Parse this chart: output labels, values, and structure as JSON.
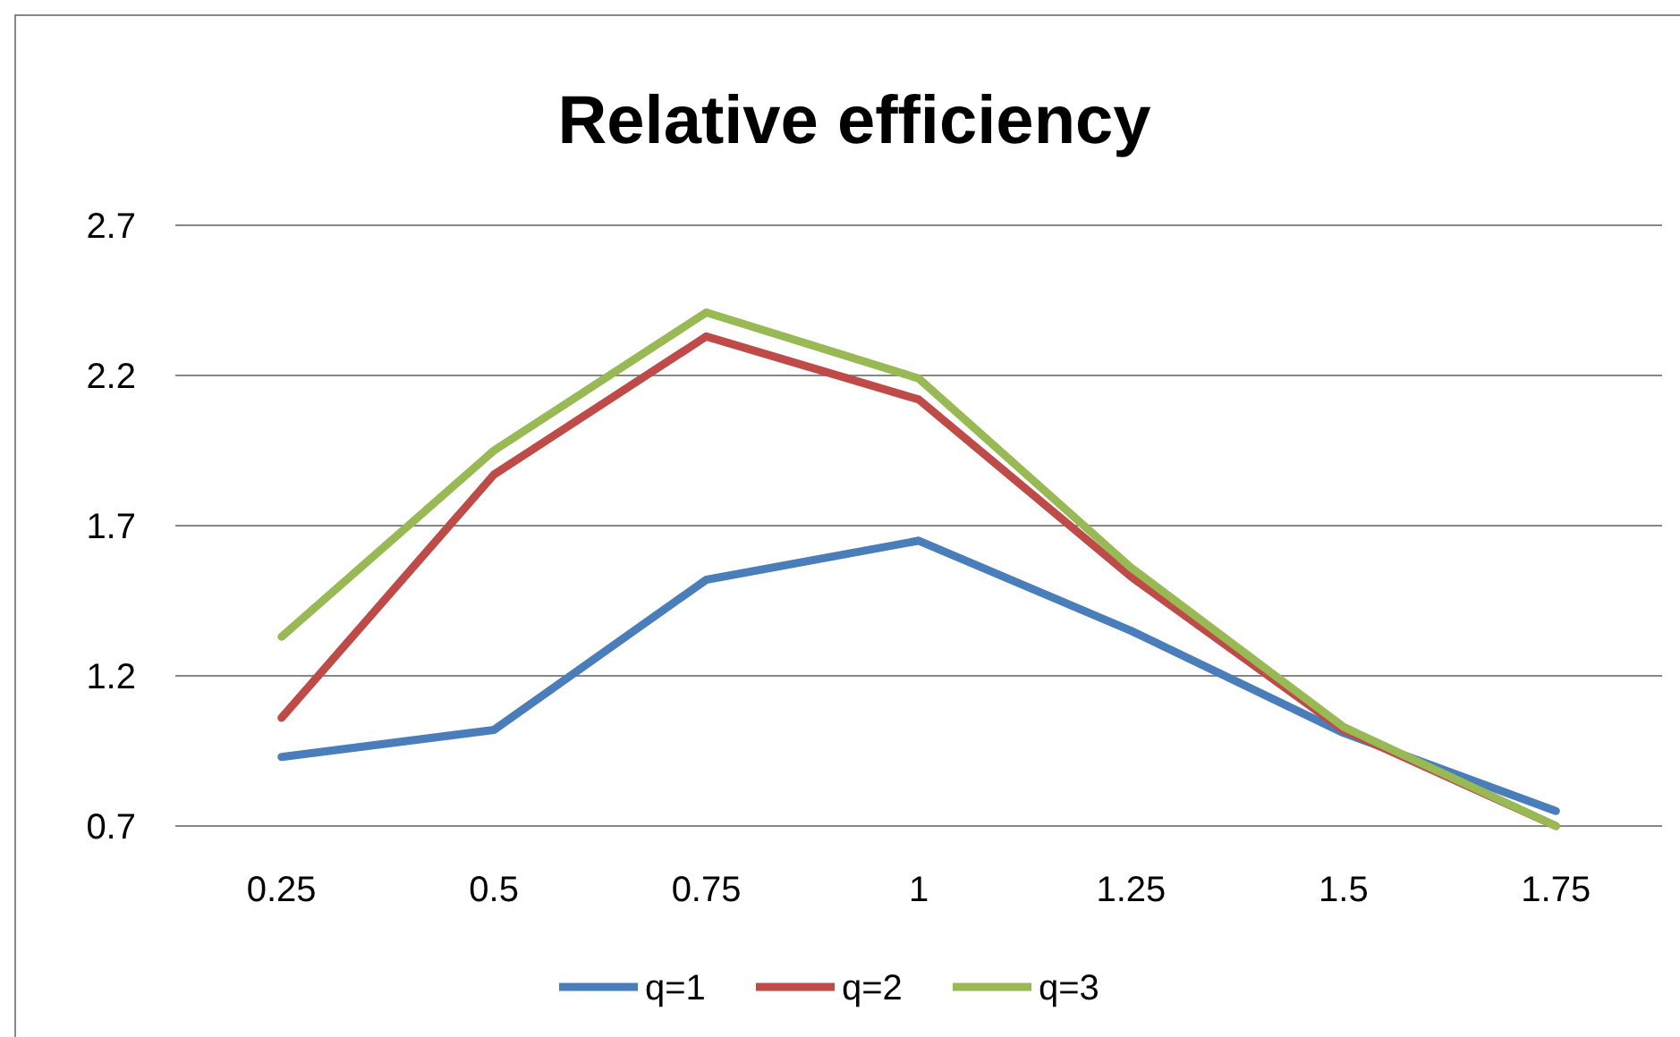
{
  "chart_data": {
    "type": "line",
    "title": "Relative efficiency",
    "categories": [
      "0.25",
      "0.5",
      "0.75",
      "1",
      "1.25",
      "1.5",
      "1.75"
    ],
    "series": [
      {
        "name": "q=1",
        "color": "#4a7ebb",
        "values": [
          0.93,
          1.02,
          1.52,
          1.65,
          1.35,
          1.01,
          0.75
        ]
      },
      {
        "name": "q=2",
        "color": "#be4b48",
        "values": [
          1.06,
          1.87,
          2.33,
          2.12,
          1.53,
          1.02,
          0.7
        ]
      },
      {
        "name": "q=3",
        "color": "#98b954",
        "values": [
          1.33,
          1.95,
          2.41,
          2.19,
          1.56,
          1.03,
          0.7
        ]
      }
    ],
    "ylim": [
      0.7,
      2.7
    ],
    "yticks": [
      0.7,
      1.2,
      1.7,
      2.2,
      2.7
    ],
    "grid": "y",
    "legend": "bottom",
    "marker": "none",
    "line_style": "solid"
  }
}
